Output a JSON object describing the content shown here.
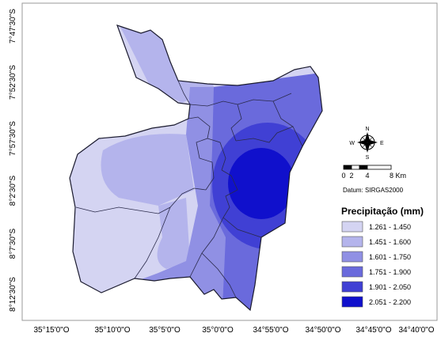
{
  "map": {
    "lat_ticks": [
      "7°47'30\"S",
      "7°52'30\"S",
      "7°57'30\"S",
      "8°2'30\"S",
      "8°7'30\"S",
      "8°12'30\"S"
    ],
    "lon_ticks": [
      "35°15'0\"O",
      "35°10'0\"O",
      "35°5'0\"O",
      "35°0'0\"O",
      "34°55'0\"O",
      "34°50'0\"O",
      "34°45'0\"O",
      "34°40'0\"O"
    ]
  },
  "legend": {
    "title": "Precipitação (mm)",
    "classes": [
      {
        "label": "1.261 - 1.450",
        "color": "#d4d4f2"
      },
      {
        "label": "1.451 - 1.600",
        "color": "#b4b4ec"
      },
      {
        "label": "1.601 - 1.750",
        "color": "#9090e4"
      },
      {
        "label": "1.751 - 1.900",
        "color": "#6a6adc"
      },
      {
        "label": "1.901 - 2.050",
        "color": "#4040d4"
      },
      {
        "label": "2.051 - 2.200",
        "color": "#1010cc"
      }
    ]
  },
  "scale_bar": {
    "ticks": [
      "0",
      "2",
      "4",
      "8 Km"
    ]
  },
  "datum": "Datum: SIRGAS2000",
  "north_arrow": {
    "icon": "compass-rose-icon",
    "labels": {
      "n": "N",
      "s": "S",
      "e": "E",
      "w": "W"
    }
  }
}
